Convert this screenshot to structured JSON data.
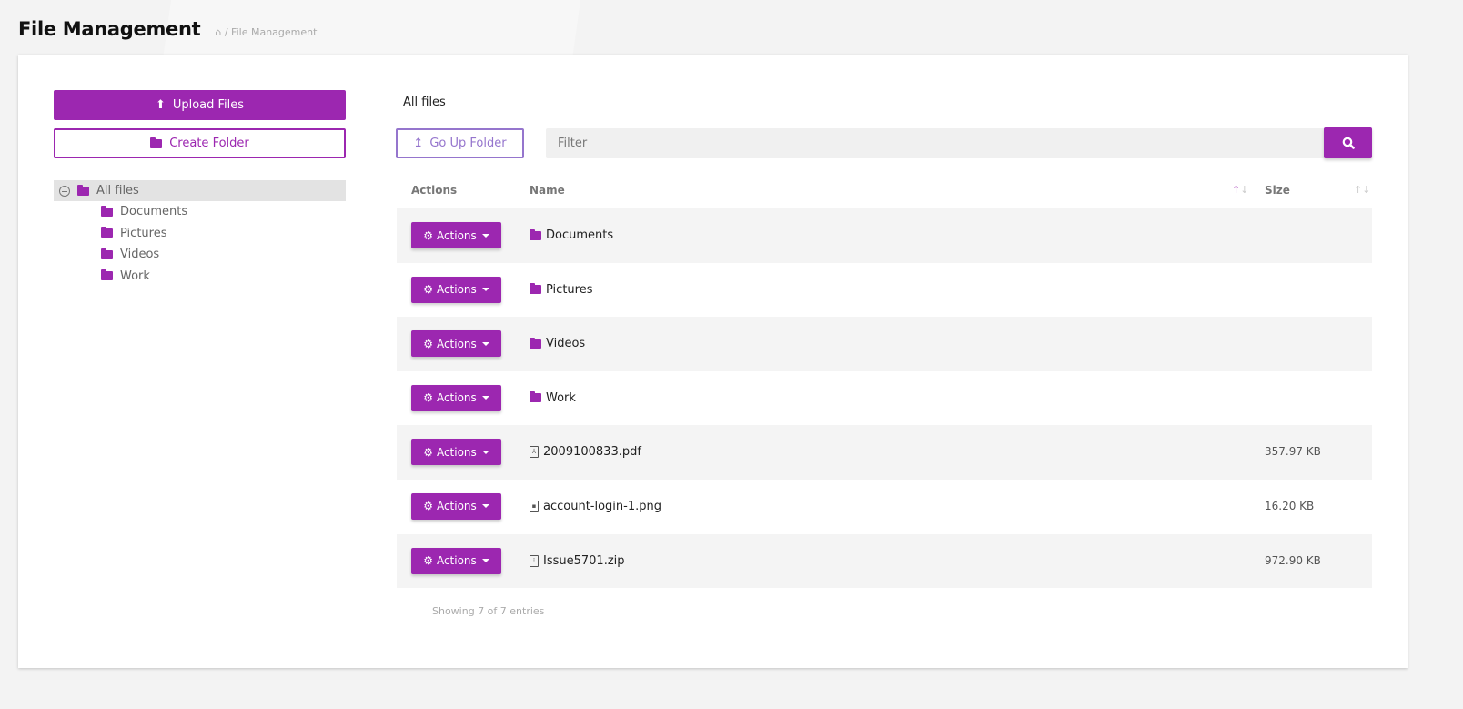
{
  "header": {
    "title": "File Management",
    "breadcrumb": "/ File Management"
  },
  "sidebar": {
    "upload_label": "Upload Files",
    "create_label": "Create Folder",
    "tree": {
      "root": "All files",
      "children": [
        "Documents",
        "Pictures",
        "Videos",
        "Work"
      ]
    }
  },
  "main": {
    "current_folder": "All files",
    "go_up_label": "Go Up Folder",
    "filter_placeholder": "Filter",
    "columns": {
      "actions": "Actions",
      "name": "Name",
      "size": "Size"
    },
    "action_label": "Actions",
    "rows": [
      {
        "type": "folder",
        "name": "Documents",
        "size": ""
      },
      {
        "type": "folder",
        "name": "Pictures",
        "size": ""
      },
      {
        "type": "folder",
        "name": "Videos",
        "size": ""
      },
      {
        "type": "folder",
        "name": "Work",
        "size": ""
      },
      {
        "type": "pdf",
        "name": "2009100833.pdf",
        "size": "357.97 KB"
      },
      {
        "type": "image",
        "name": "account-login-1.png",
        "size": "16.20 KB"
      },
      {
        "type": "zip",
        "name": "Issue5701.zip",
        "size": "972.90 KB"
      }
    ],
    "info": "Showing 7 of 7 entries"
  },
  "colors": {
    "accent": "#9c27b0",
    "secondary": "#9575cd"
  }
}
